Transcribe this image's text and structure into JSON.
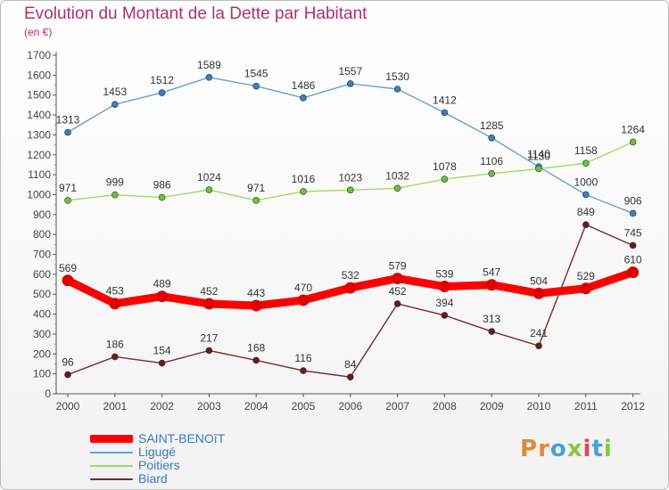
{
  "header": {
    "title": "Evolution du Montant de la Dette par Habitant",
    "subtitle": "(en €)"
  },
  "logo": {
    "letters": [
      {
        "char": "P",
        "color": "#e2873a"
      },
      {
        "char": "r",
        "color": "#e2873a"
      },
      {
        "char": "o",
        "color": "#4aa0d8"
      },
      {
        "char": "x",
        "color": "#8cc63f"
      },
      {
        "char": "i",
        "color": "#e24a4a"
      },
      {
        "char": "t",
        "color": "#4aa0d8"
      },
      {
        "char": "i",
        "color": "#8cc63f"
      }
    ]
  },
  "chart_data": {
    "type": "line",
    "title": "Evolution du Montant de la Dette par Habitant",
    "subtitle": "(en €)",
    "xlabel": "",
    "ylabel": "",
    "x": [
      "2000",
      "2001",
      "2002",
      "2003",
      "2004",
      "2005",
      "2006",
      "2007",
      "2008",
      "2009",
      "2010",
      "2011",
      "2012"
    ],
    "ylim": [
      0,
      1700
    ],
    "yticks": [
      0,
      100,
      200,
      300,
      400,
      500,
      600,
      700,
      800,
      900,
      1000,
      1100,
      1200,
      1300,
      1400,
      1500,
      1600,
      1700
    ],
    "grid": false,
    "legend_position": "bottom-left",
    "series": [
      {
        "name": "SAINT-BENOîT",
        "color": "#ff0000",
        "point_color": "#e00000",
        "emphasis": true,
        "values": [
          569,
          453,
          489,
          452,
          443,
          470,
          532,
          579,
          539,
          547,
          504,
          529,
          610
        ]
      },
      {
        "name": "Ligugé",
        "color": "#6a9fd4",
        "point_color": "#3a7ec0",
        "emphasis": false,
        "values": [
          1313,
          1453,
          1512,
          1589,
          1545,
          1486,
          1557,
          1530,
          1412,
          1285,
          1140,
          1000,
          906
        ]
      },
      {
        "name": "Poitiers",
        "color": "#9ddc66",
        "point_color": "#6cc23a",
        "emphasis": false,
        "values": [
          971,
          999,
          986,
          1024,
          971,
          1016,
          1023,
          1032,
          1078,
          1106,
          1130,
          1158,
          1264
        ]
      },
      {
        "name": "Biard",
        "color": "#7a2a2a",
        "point_color": "#6a1a1a",
        "emphasis": false,
        "values": [
          96,
          186,
          154,
          217,
          168,
          116,
          84,
          452,
          394,
          313,
          241,
          849,
          745
        ]
      }
    ]
  }
}
